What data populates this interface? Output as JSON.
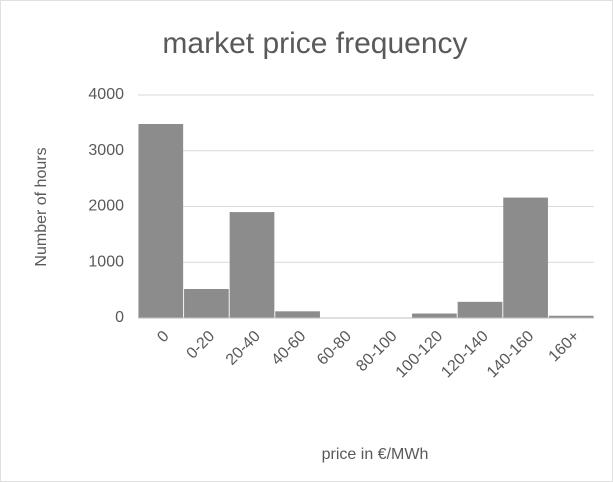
{
  "chart_data": {
    "type": "bar",
    "title": "market price frequency",
    "x_label": "price in €/MWh",
    "y_label": "Number of hours",
    "categories": [
      "0",
      "0-20",
      "20-40",
      "40-60",
      "60-80",
      "80-100",
      "100-120",
      "120-140",
      "140-160",
      "160+"
    ],
    "values": [
      3480,
      520,
      1900,
      120,
      0,
      0,
      80,
      290,
      2160,
      40
    ],
    "color": "#8c8c8c",
    "ylim": [
      0,
      4000
    ],
    "yticks": [
      0,
      1000,
      2000,
      3000,
      4000
    ],
    "grid": true
  }
}
